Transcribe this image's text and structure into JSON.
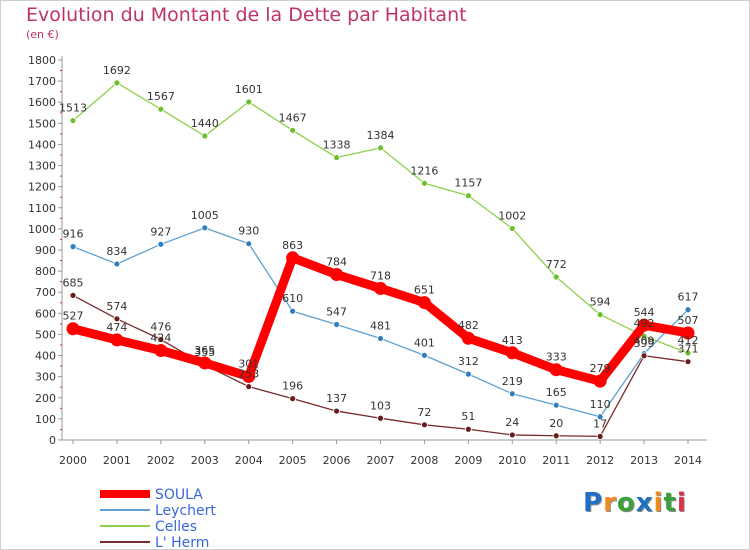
{
  "title": "Evolution du Montant de la Dette par Habitant",
  "subtitle": "(en €)",
  "logo": {
    "text": "Proxiti",
    "letters": [
      {
        "ch": "P",
        "color": "#1f6fc4"
      },
      {
        "ch": "r",
        "color": "#f08c1e"
      },
      {
        "ch": "o",
        "color": "#3aa13a"
      },
      {
        "ch": "x",
        "color": "#1f6fc4"
      },
      {
        "ch": "i",
        "color": "#f08c1e"
      },
      {
        "ch": "t",
        "color": "#3aa13a"
      },
      {
        "ch": "i",
        "color": "#d9334a"
      }
    ]
  },
  "chart_data": {
    "type": "line",
    "x": [
      "2000",
      "2001",
      "2002",
      "2003",
      "2004",
      "2005",
      "2006",
      "2007",
      "2008",
      "2009",
      "2010",
      "2011",
      "2012",
      "2013",
      "2014"
    ],
    "ylim": [
      0,
      1800
    ],
    "yticks": [
      0,
      100,
      200,
      300,
      400,
      500,
      600,
      700,
      800,
      900,
      1000,
      1100,
      1200,
      1300,
      1400,
      1500,
      1600,
      1700,
      1800
    ],
    "grid": false,
    "legend_position": "bottom-left",
    "series": [
      {
        "name": "Celles",
        "color": "#8ed04a",
        "marker": "#6cc02a",
        "values": [
          1513,
          1692,
          1567,
          1440,
          1601,
          1467,
          1338,
          1384,
          1216,
          1157,
          1002,
          772,
          594,
          492,
          412
        ],
        "labels": [
          "1513",
          "1692",
          "1567",
          "1440",
          "1601",
          "1467",
          "1338",
          "1384",
          "1216",
          "1157",
          "1002",
          "772",
          "594",
          "492",
          "412"
        ]
      },
      {
        "name": "Leychert",
        "color": "#5fa0d0",
        "marker": "#2f7fbf",
        "values": [
          916,
          834,
          927,
          1005,
          930,
          610,
          547,
          481,
          401,
          312,
          219,
          165,
          110,
          409,
          617
        ],
        "labels": [
          "916",
          "834",
          "927",
          "1005",
          "930",
          "610",
          "547",
          "481",
          "401",
          "312",
          "219",
          "165",
          "110",
          "409",
          "617"
        ]
      },
      {
        "name": "L' Herm",
        "color": "#7a2a2a",
        "marker": "#6a1c1c",
        "values": [
          685,
          574,
          476,
          355,
          253,
          196,
          137,
          103,
          72,
          51,
          24,
          20,
          17,
          399,
          371
        ],
        "labels": [
          "685",
          "574",
          "476",
          "355",
          "253",
          "196",
          "137",
          "103",
          "72",
          "51",
          "24",
          "20",
          "17",
          "399",
          "371"
        ]
      },
      {
        "name": "SOULA",
        "color": "#ff0000",
        "marker": "#ff0000",
        "values": [
          527,
          474,
          424,
          365,
          301,
          863,
          784,
          718,
          651,
          482,
          413,
          333,
          279,
          544,
          507
        ],
        "labels": [
          "527",
          "474",
          "424",
          "365",
          "301",
          "863",
          "784",
          "718",
          "651",
          "482",
          "413",
          "333",
          "279",
          "544",
          "507"
        ]
      }
    ],
    "legend_order": [
      "SOULA",
      "Leychert",
      "Celles",
      "L' Herm"
    ]
  }
}
